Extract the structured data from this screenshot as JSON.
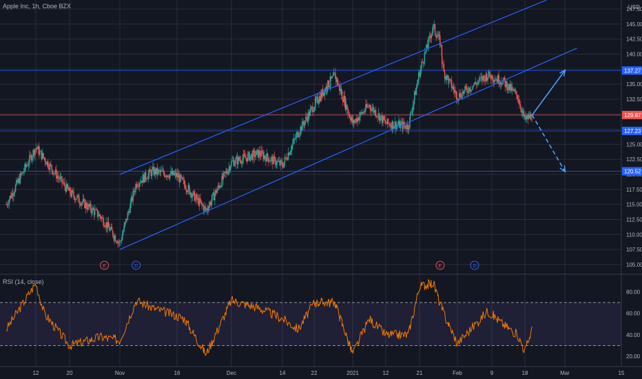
{
  "header": {
    "title": "Apple Inc, 1h, Cboe BZX",
    "currency": "USD"
  },
  "rsi_panel": {
    "title": "RSI (14, close)"
  },
  "colors": {
    "background": "#131722",
    "grid": "#2a2e39",
    "up": "#26a69a",
    "down": "#ef5350",
    "channel": "#2962ff",
    "rsi_line": "#f57c00",
    "rsi_band": "#7e57c2",
    "axis_text": "#b2b5be"
  },
  "chart_data": [
    {
      "type": "candlestick",
      "title": "Apple Inc, 1h, Cboe BZX",
      "ylim": [
        103.5,
        149.0
      ],
      "price_ticks": [
        "147.50",
        "145.00",
        "142.50",
        "140.00",
        "137.50",
        "135.00",
        "132.50",
        "130.00",
        "127.50",
        "125.00",
        "122.50",
        "120.00",
        "117.50",
        "115.00",
        "112.50",
        "110.00",
        "107.50",
        "105.00"
      ],
      "x_ticks": [
        "12",
        "20",
        "Nov",
        "16",
        "Dec",
        "14",
        "22",
        "2021",
        "12",
        "21",
        "Feb",
        "9",
        "18",
        "Mar",
        "15"
      ],
      "price_labels": [
        {
          "text": "137.27",
          "value": 137.27,
          "color": "#2962ff"
        },
        {
          "text": "129.87",
          "value": 129.87,
          "color": "#ef5350"
        },
        {
          "text": "127.23",
          "value": 127.23,
          "color": "#2962ff"
        },
        {
          "text": "120.52",
          "value": 120.52,
          "color": "#2962ff"
        }
      ],
      "horizontal_levels": [
        137.27,
        129.87,
        127.23,
        120.52
      ],
      "key_points": [
        {
          "date": "2020-10-05",
          "close": 115.0
        },
        {
          "date": "2020-10-12",
          "close": 124.5
        },
        {
          "date": "2020-10-20",
          "close": 117.0
        },
        {
          "date": "2020-10-28",
          "close": 113.0
        },
        {
          "date": "2020-11-02",
          "close": 108.5
        },
        {
          "date": "2020-11-06",
          "close": 118.5
        },
        {
          "date": "2020-11-10",
          "close": 120.5
        },
        {
          "date": "2020-11-16",
          "close": 119.8
        },
        {
          "date": "2020-11-24",
          "close": 114.0
        },
        {
          "date": "2020-12-01",
          "close": 122.0
        },
        {
          "date": "2020-12-08",
          "close": 123.5
        },
        {
          "date": "2020-12-14",
          "close": 121.5
        },
        {
          "date": "2020-12-18",
          "close": 127.0
        },
        {
          "date": "2020-12-22",
          "close": 131.5
        },
        {
          "date": "2020-12-29",
          "close": 136.5
        },
        {
          "date": "2021-01-04",
          "close": 128.5
        },
        {
          "date": "2021-01-08",
          "close": 131.5
        },
        {
          "date": "2021-01-12",
          "close": 128.5
        },
        {
          "date": "2021-01-18",
          "close": 128.0
        },
        {
          "date": "2021-01-21",
          "close": 137.0
        },
        {
          "date": "2021-01-25",
          "close": 144.5
        },
        {
          "date": "2021-01-27",
          "close": 142.0
        },
        {
          "date": "2021-01-28",
          "close": 137.0
        },
        {
          "date": "2021-02-01",
          "close": 133.0
        },
        {
          "date": "2021-02-08",
          "close": 136.5
        },
        {
          "date": "2021-02-12",
          "close": 135.5
        },
        {
          "date": "2021-02-16",
          "close": 133.0
        },
        {
          "date": "2021-02-18",
          "close": 129.0
        },
        {
          "date": "2021-02-20",
          "close": 129.87
        }
      ],
      "channel_upper": [
        {
          "date": "2020-11-02",
          "price": 120.0
        },
        {
          "date": "2021-02-24",
          "price": 149.0
        }
      ],
      "channel_lower": [
        {
          "date": "2020-11-02",
          "price": 107.5
        },
        {
          "date": "2021-03-04",
          "price": 141.0
        }
      ],
      "projection_up": [
        {
          "date": "2021-02-20",
          "price": 129.87
        },
        {
          "date": "2021-03-01",
          "price": 137.27
        }
      ],
      "projection_down": [
        {
          "date": "2021-02-20",
          "price": 129.87
        },
        {
          "date": "2021-03-01",
          "price": 120.52
        }
      ],
      "event_markers": [
        {
          "label": "E",
          "date": "2020-10-29",
          "color": "#ef5350"
        },
        {
          "label": "D",
          "date": "2020-11-06",
          "color": "#2962ff"
        },
        {
          "label": "E",
          "date": "2021-01-27",
          "color": "#ef5350"
        },
        {
          "label": "D",
          "date": "2021-02-05",
          "color": "#2962ff"
        }
      ]
    },
    {
      "type": "line",
      "title": "RSI (14, close)",
      "ylim": [
        13,
        95
      ],
      "y_ticks": [
        "80.00",
        "60.00",
        "40.00",
        "20.00"
      ],
      "band": [
        30,
        70
      ],
      "key_points": [
        {
          "date": "2020-10-05",
          "rsi": 45
        },
        {
          "date": "2020-10-12",
          "rsi": 88
        },
        {
          "date": "2020-10-14",
          "rsi": 60
        },
        {
          "date": "2020-10-20",
          "rsi": 30
        },
        {
          "date": "2020-10-28",
          "rsi": 38
        },
        {
          "date": "2020-11-02",
          "rsi": 35
        },
        {
          "date": "2020-11-06",
          "rsi": 72
        },
        {
          "date": "2020-11-10",
          "rsi": 65
        },
        {
          "date": "2020-11-18",
          "rsi": 55
        },
        {
          "date": "2020-11-24",
          "rsi": 22
        },
        {
          "date": "2020-12-01",
          "rsi": 72
        },
        {
          "date": "2020-12-08",
          "rsi": 65
        },
        {
          "date": "2020-12-14",
          "rsi": 55
        },
        {
          "date": "2020-12-18",
          "rsi": 45
        },
        {
          "date": "2020-12-22",
          "rsi": 70
        },
        {
          "date": "2020-12-29",
          "rsi": 70
        },
        {
          "date": "2021-01-04",
          "rsi": 22
        },
        {
          "date": "2021-01-08",
          "rsi": 55
        },
        {
          "date": "2021-01-12",
          "rsi": 40
        },
        {
          "date": "2021-01-18",
          "rsi": 40
        },
        {
          "date": "2021-01-21",
          "rsi": 85
        },
        {
          "date": "2021-01-25",
          "rsi": 88
        },
        {
          "date": "2021-01-28",
          "rsi": 60
        },
        {
          "date": "2021-02-01",
          "rsi": 32
        },
        {
          "date": "2021-02-08",
          "rsi": 62
        },
        {
          "date": "2021-02-12",
          "rsi": 50
        },
        {
          "date": "2021-02-16",
          "rsi": 40
        },
        {
          "date": "2021-02-18",
          "rsi": 25
        },
        {
          "date": "2021-02-20",
          "rsi": 45
        }
      ]
    }
  ]
}
